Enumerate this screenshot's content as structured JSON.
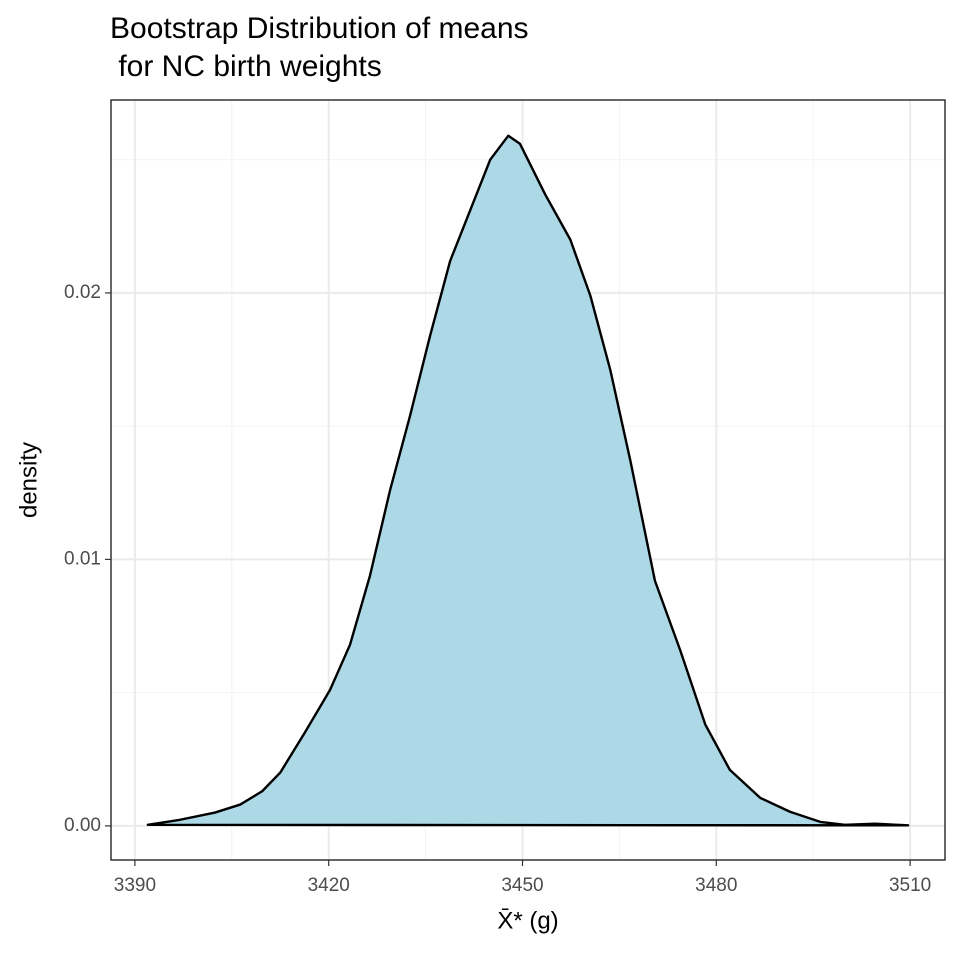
{
  "chart_data": {
    "type": "density",
    "title": [
      "Bootstrap Distribution of means",
      " for NC birth weights"
    ],
    "x_label": "X̄* (g)",
    "y_label": "density",
    "x": [
      3392.0,
      3397.0,
      3402.4,
      3406.3,
      3409.7,
      3412.5,
      3416.3,
      3420.2,
      3423.3,
      3426.4,
      3429.5,
      3432.6,
      3435.7,
      3438.8,
      3441.9,
      3445.0,
      3447.8,
      3449.6,
      3453.5,
      3457.4,
      3460.5,
      3463.6,
      3466.7,
      3470.5,
      3474.4,
      3478.3,
      3482.1,
      3486.8,
      3491.4,
      3496.1,
      3499.9,
      3504.6,
      3509.7
    ],
    "values": [
      4e-05,
      0.00023,
      0.0005,
      0.0008,
      0.0013,
      0.002,
      0.0035,
      0.0051,
      0.0068,
      0.0094,
      0.0126,
      0.0154,
      0.0184,
      0.0212,
      0.0231,
      0.025,
      0.0259,
      0.0256,
      0.0237,
      0.022,
      0.0199,
      0.0171,
      0.0137,
      0.0092,
      0.0066,
      0.0038,
      0.0021,
      0.00105,
      0.00053,
      0.00015,
      4e-05,
      8e-05,
      2e-05
    ],
    "color": "#add8e6",
    "line_color": "#000000",
    "xlim": [
      3386.3,
      3515.4
    ],
    "ylim": [
      -0.00128,
      0.02724
    ],
    "xticks": [
      3390,
      3420,
      3450,
      3480,
      3510
    ],
    "yticks": [
      {
        "value": 0,
        "label": "0.00"
      },
      0.01,
      0.02
    ],
    "x_minor_grid": [
      3405,
      3435,
      3465,
      3495
    ],
    "y_minor_grid": [
      0.005,
      0.015,
      0.025
    ],
    "grid": true
  }
}
